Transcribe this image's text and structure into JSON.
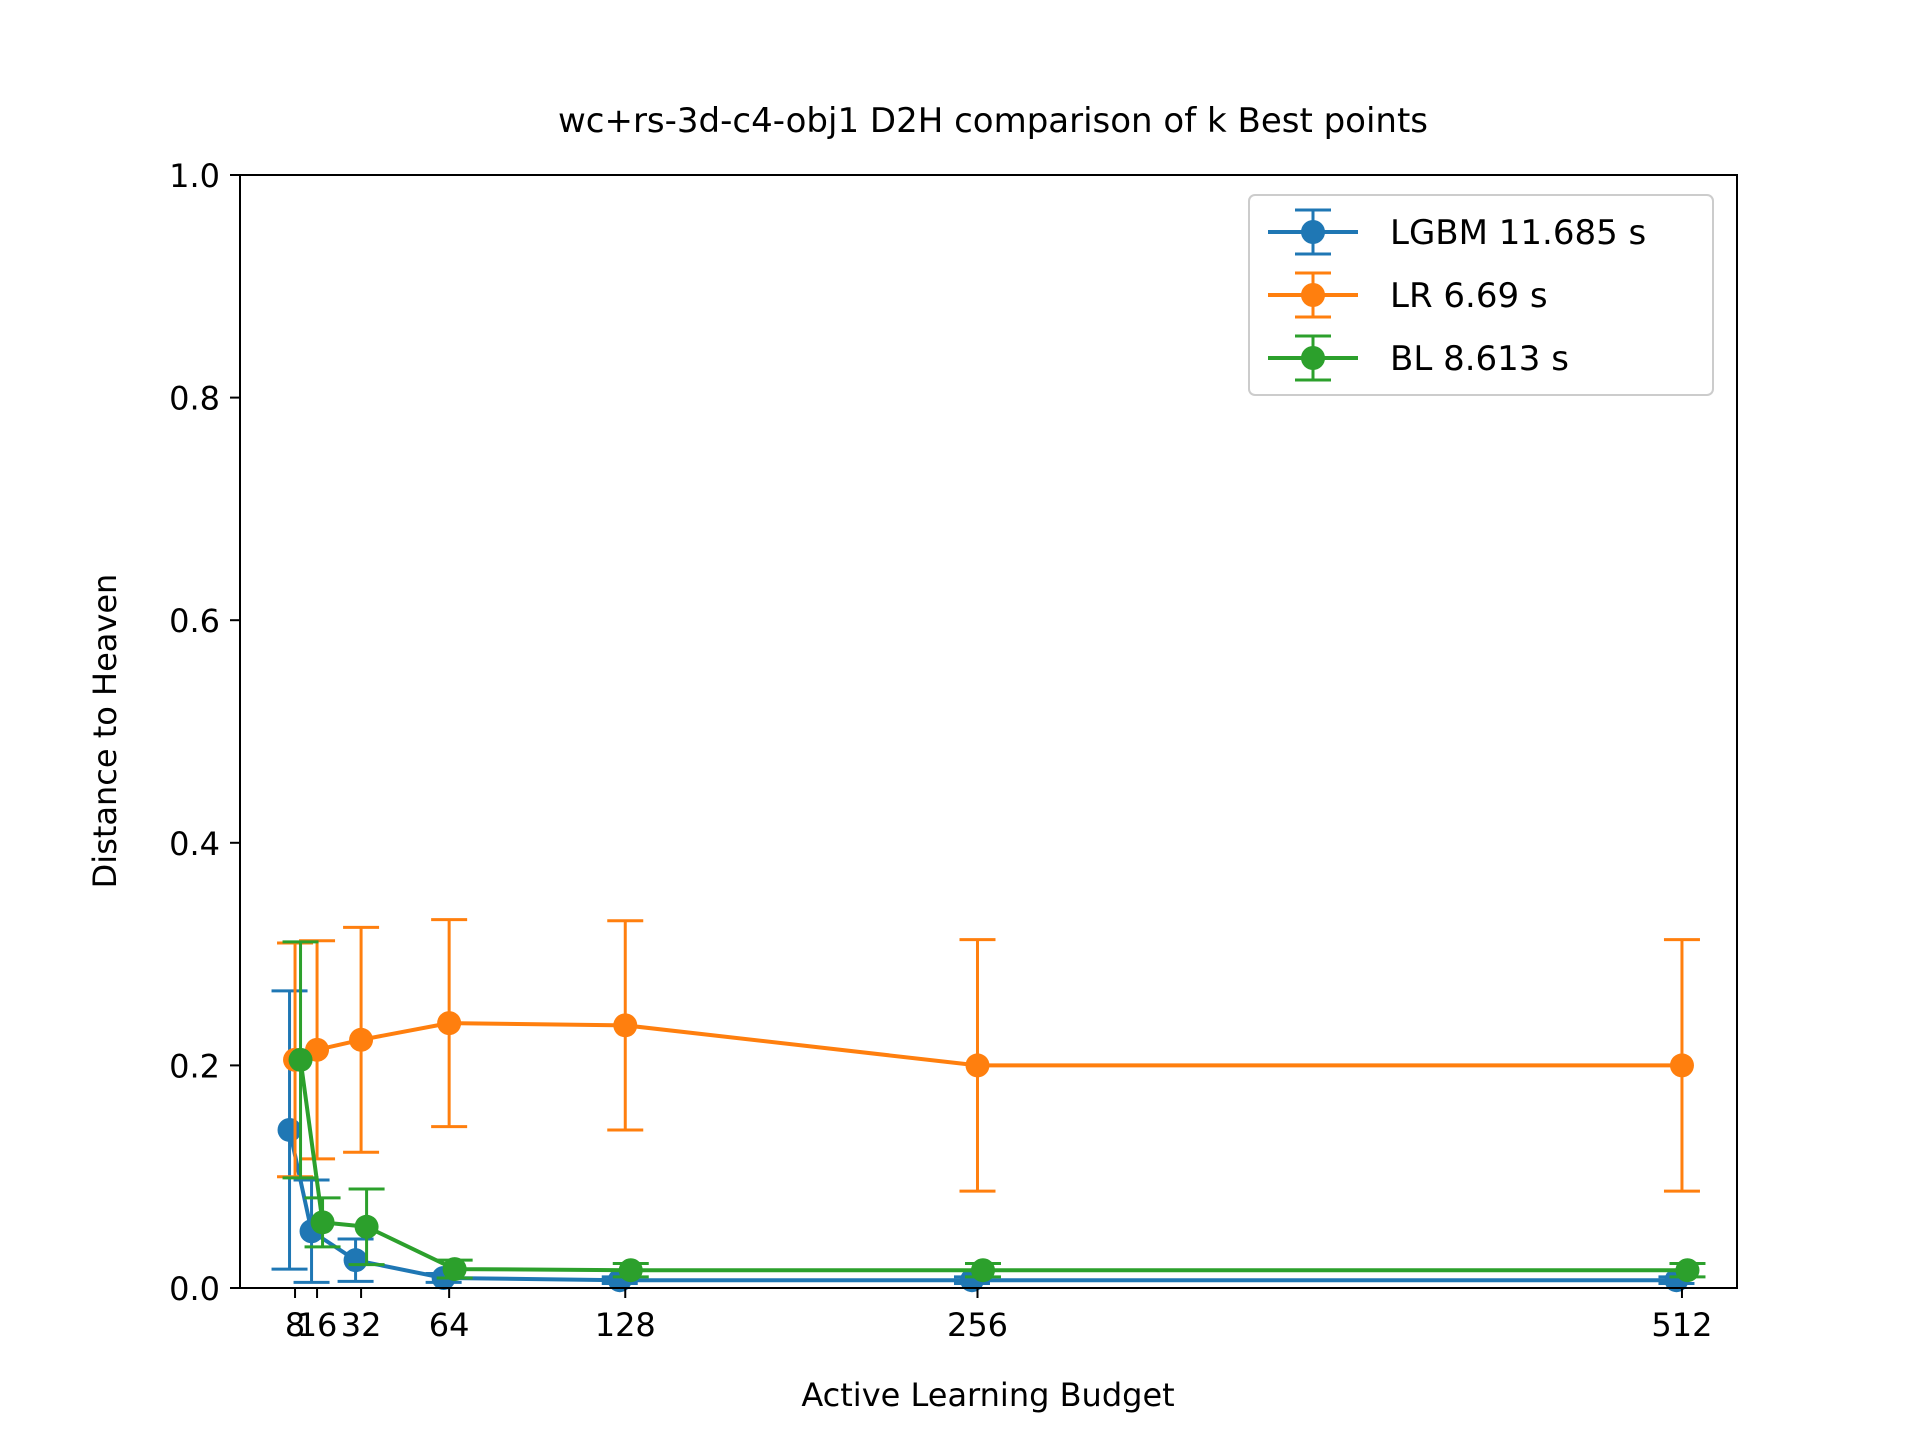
{
  "chart_data": {
    "type": "line",
    "title": "wc+rs-3d-c4-obj1 D2H comparison of k Best points",
    "xlabel": "Active Learning Budget",
    "ylabel": "Distance to Heaven",
    "xlim": [
      -12,
      532
    ],
    "ylim": [
      0,
      1.0
    ],
    "x_ticks": [
      8,
      16,
      32,
      64,
      128,
      256,
      512
    ],
    "x_tick_labels": [
      "8",
      "16",
      "32",
      "64",
      "128",
      "256",
      "512"
    ],
    "y_ticks": [
      0.0,
      0.2,
      0.4,
      0.6,
      0.8,
      1.0
    ],
    "y_tick_labels": [
      "0.0",
      "0.2",
      "0.4",
      "0.6",
      "0.8",
      "1.0"
    ],
    "grid": false,
    "legend_position": "top-right",
    "series": [
      {
        "name": "LGBM 11.685 s",
        "color": "#1f77b4",
        "x_offset": -2,
        "x": [
          8,
          16,
          32,
          64,
          128,
          256,
          512
        ],
        "y": [
          0.142,
          0.051,
          0.025,
          0.009,
          0.007,
          0.007,
          0.007
        ],
        "err": [
          0.125,
          0.046,
          0.019,
          0.004,
          0.003,
          0.003,
          0.003
        ]
      },
      {
        "name": "LR 6.69 s",
        "color": "#ff7f0e",
        "x_offset": 0,
        "x": [
          8,
          16,
          32,
          64,
          128,
          256,
          512
        ],
        "y": [
          0.205,
          0.214,
          0.223,
          0.238,
          0.236,
          0.2,
          0.2
        ],
        "err": [
          0.105,
          0.098,
          0.101,
          0.093,
          0.094,
          0.113,
          0.113
        ]
      },
      {
        "name": "BL 8.613 s",
        "color": "#2ca02c",
        "x_offset": 2,
        "x": [
          8,
          16,
          32,
          64,
          128,
          256,
          512
        ],
        "y": [
          0.205,
          0.059,
          0.055,
          0.017,
          0.016,
          0.016,
          0.016
        ],
        "err": [
          0.106,
          0.022,
          0.034,
          0.008,
          0.006,
          0.006,
          0.006
        ]
      }
    ]
  }
}
